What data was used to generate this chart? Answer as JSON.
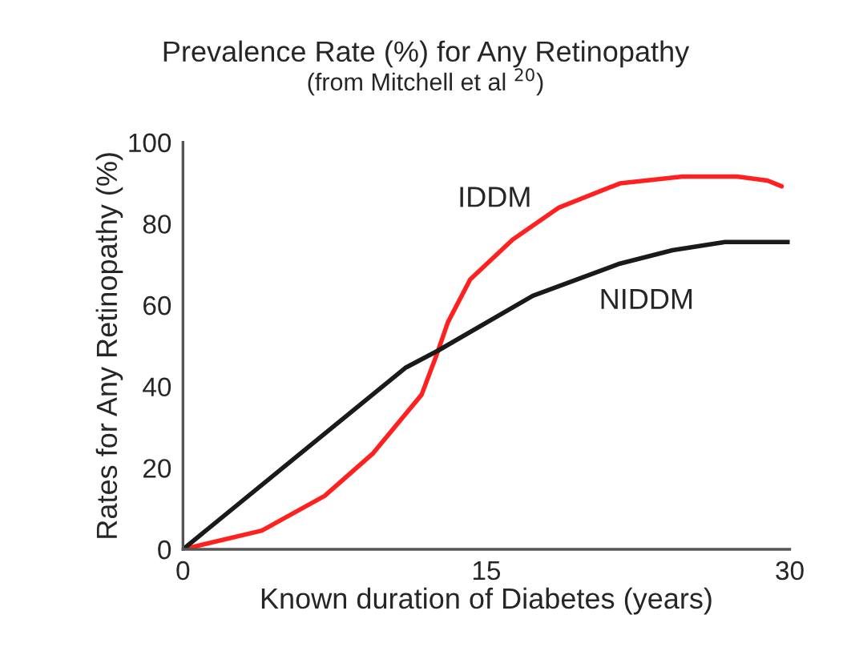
{
  "chart_data": {
    "type": "line",
    "title": "Prevalence Rate (%) for Any Retinopathy",
    "subtitle": "(from Mitchell et al $^{20}$)",
    "xlabel": "Known duration of Diabetes (years)",
    "ylabel": "Rates for Any Retinopathy (%)",
    "xlim": [
      0,
      30
    ],
    "xticks": [
      0,
      15,
      30
    ],
    "ylim": [
      0,
      100
    ],
    "yticks": [
      0,
      20,
      40,
      60,
      80,
      100
    ],
    "grid": false,
    "legend": false,
    "marker": "none",
    "line_style": "solid",
    "series": [
      {
        "name": "IDDM",
        "color": "#ff2020",
        "x": [
          0,
          3.9,
          7.0,
          9.4,
          11.8,
          12.5,
          13.1,
          14.2,
          16.3,
          18.6,
          21.6,
          24.7,
          27.4,
          28.9,
          29.6
        ],
        "values": [
          0,
          4.6,
          13.1,
          23.6,
          38,
          47.2,
          55.8,
          66.3,
          76.1,
          84,
          89.9,
          91.6,
          91.6,
          90.6,
          89.2
        ]
      },
      {
        "name": "NIDDM",
        "color": "#1a1a1a",
        "x": [
          0,
          11,
          12.6,
          17.3,
          21.6,
          24.2,
          26.8,
          30
        ],
        "values": [
          0,
          44.6,
          48.8,
          62.3,
          70.2,
          73.5,
          75.5,
          75.5
        ]
      }
    ]
  }
}
